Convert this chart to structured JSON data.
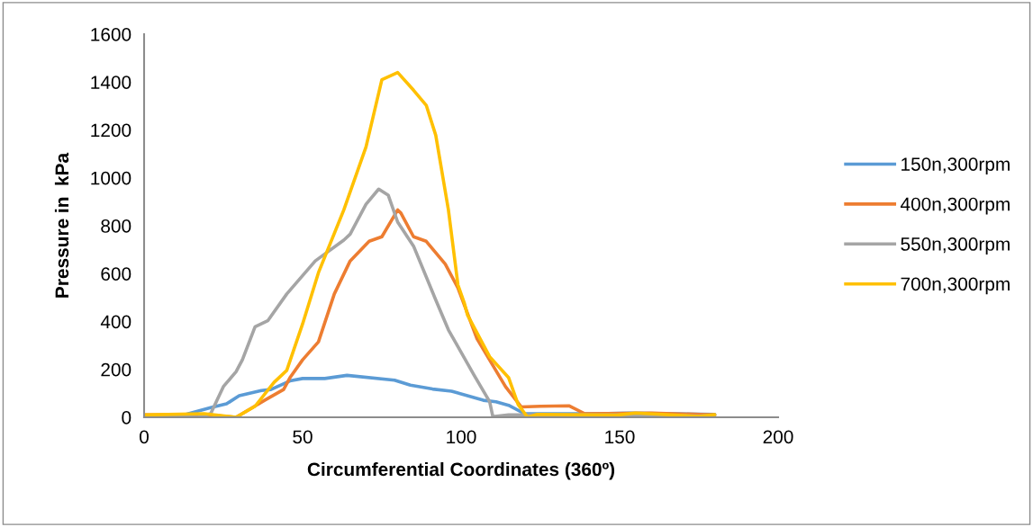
{
  "chart_data": {
    "type": "line",
    "xlabel": "Circumferential Coordinates (360º)",
    "ylabel": "Pressure in  kPa",
    "xlim": [
      0,
      200
    ],
    "xticks": [
      0,
      50,
      100,
      150,
      200
    ],
    "ylim": [
      0,
      1600
    ],
    "yticks": [
      0,
      200,
      400,
      600,
      800,
      1000,
      1200,
      1400,
      1600
    ],
    "grid": false,
    "legend": "right",
    "marker": "none",
    "line_style": "solid",
    "series": [
      {
        "name": "150n,300rpm",
        "color": "#5b9bd5",
        "x": [
          0,
          10,
          14,
          21,
          26,
          30,
          37,
          40,
          46,
          50,
          57,
          64,
          79,
          84,
          91,
          97,
          107,
          111,
          115,
          120,
          143,
          153,
          180
        ],
        "values": [
          0,
          0,
          15,
          40,
          56,
          90,
          112,
          116,
          152,
          162,
          162,
          175,
          155,
          134,
          118,
          109,
          71,
          65,
          50,
          15,
          15,
          18,
          12
        ]
      },
      {
        "name": "400n,300rpm",
        "color": "#ed7d31",
        "x": [
          0,
          20,
          29,
          35,
          38,
          44,
          46,
          50,
          55,
          60,
          65,
          71,
          75,
          80,
          81,
          85,
          89,
          95,
          99,
          105,
          114,
          119,
          125,
          134,
          139,
          160,
          180
        ],
        "values": [
          10,
          10,
          0,
          47,
          71,
          116,
          165,
          240,
          315,
          515,
          653,
          735,
          754,
          866,
          853,
          754,
          735,
          640,
          540,
          328,
          128,
          43,
          46,
          48,
          15,
          18,
          10
        ]
      },
      {
        "name": "550n,300rpm",
        "color": "#a5a5a5",
        "x": [
          0,
          17,
          21,
          25,
          29,
          31,
          35,
          39,
          45,
          54,
          63,
          65,
          70,
          74,
          77,
          80,
          85,
          92,
          96,
          104,
          109,
          110,
          115,
          160,
          175,
          180
        ],
        "values": [
          5,
          0,
          15,
          128,
          190,
          240,
          378,
          403,
          515,
          653,
          740,
          765,
          890,
          953,
          928,
          815,
          715,
          490,
          365,
          178,
          65,
          3,
          10,
          10,
          5,
          8
        ]
      },
      {
        "name": "700n,300rpm",
        "color": "#ffc000",
        "x": [
          0,
          19,
          29,
          35,
          41,
          45,
          50,
          55,
          63,
          70,
          75,
          80,
          85,
          89,
          92,
          96,
          99,
          101,
          102,
          109,
          115,
          118,
          121,
          124,
          149,
          155,
          175,
          180
        ],
        "values": [
          10,
          15,
          0,
          46,
          146,
          196,
          390,
          604,
          866,
          1129,
          1410,
          1440,
          1366,
          1303,
          1178,
          866,
          553,
          478,
          428,
          253,
          165,
          53,
          0,
          12,
          9,
          18,
          4,
          11
        ]
      }
    ]
  }
}
